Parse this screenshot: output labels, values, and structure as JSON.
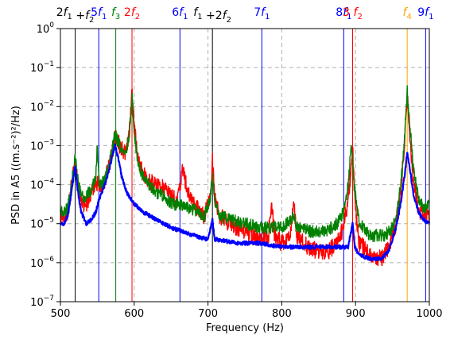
{
  "chart_data": {
    "type": "line",
    "title": "",
    "xlabel": "Frequency (Hz)",
    "ylabel": "PSD in A5 ((m.s⁻²)²/Hz)",
    "xlim": [
      500,
      1000
    ],
    "ylim_exponent": [
      -7,
      0
    ],
    "yscale": "log",
    "grid": "dashed-gray",
    "x_ticks": [
      "500",
      "600",
      "700",
      "800",
      "900",
      "1000"
    ],
    "y_ticks": [
      {
        "base": "10",
        "exp": "0",
        "value": 0
      },
      {
        "base": "10",
        "exp": "−1",
        "value": -1
      },
      {
        "base": "10",
        "exp": "−2",
        "value": -2
      },
      {
        "base": "10",
        "exp": "−3",
        "value": -3
      },
      {
        "base": "10",
        "exp": "−4",
        "value": -4
      },
      {
        "base": "10",
        "exp": "−5",
        "value": -5
      },
      {
        "base": "10",
        "exp": "−6",
        "value": -6
      },
      {
        "base": "10",
        "exp": "−7",
        "value": -7
      }
    ],
    "vertical_markers": [
      {
        "x": 520,
        "color": "#000000",
        "style": "solid"
      },
      {
        "x": 552,
        "color": "#0000ff",
        "style": "solid"
      },
      {
        "x": 575,
        "color": "#008000",
        "style": "solid"
      },
      {
        "x": 597,
        "color": "#ff0000",
        "style": "solid"
      },
      {
        "x": 662,
        "color": "#0000ff",
        "style": "solid"
      },
      {
        "x": 706,
        "color": "#000000",
        "style": "solid"
      },
      {
        "x": 773,
        "color": "#0000ff",
        "style": "solid"
      },
      {
        "x": 884,
        "color": "#0000ff",
        "style": "solid"
      },
      {
        "x": 896,
        "color": "#ff0000",
        "style": "solid"
      },
      {
        "x": 970,
        "color": "#ffa500",
        "style": "solid"
      },
      {
        "x": 995,
        "color": "#0000ff",
        "style": "solid"
      }
    ],
    "top_labels": [
      {
        "x": 520,
        "color": "#000000",
        "parts": [
          {
            "t": "2"
          },
          {
            "t": "f",
            "i": true
          },
          {
            "t": "1",
            "sub": true
          },
          {
            "t": " +"
          },
          {
            "t": "f",
            "i": true
          },
          {
            "t": "2",
            "sub": true
          }
        ]
      },
      {
        "x": 552,
        "color": "#0000ff",
        "parts": [
          {
            "t": "5"
          },
          {
            "t": "f",
            "i": true
          },
          {
            "t": "1",
            "sub": true
          }
        ]
      },
      {
        "x": 575,
        "color": "#008000",
        "parts": [
          {
            "t": "f",
            "i": true
          },
          {
            "t": "3",
            "sub": true
          }
        ]
      },
      {
        "x": 597,
        "color": "#ff0000",
        "parts": [
          {
            "t": "2"
          },
          {
            "t": "f",
            "i": true
          },
          {
            "t": "2",
            "sub": true
          }
        ]
      },
      {
        "x": 662,
        "color": "#0000ff",
        "parts": [
          {
            "t": "6"
          },
          {
            "t": "f",
            "i": true
          },
          {
            "t": "1",
            "sub": true
          }
        ]
      },
      {
        "x": 706,
        "color": "#000000",
        "parts": [
          {
            "t": "f",
            "i": true
          },
          {
            "t": "1",
            "sub": true
          },
          {
            "t": " +2"
          },
          {
            "t": "f",
            "i": true
          },
          {
            "t": "2",
            "sub": true
          }
        ]
      },
      {
        "x": 773,
        "color": "#0000ff",
        "parts": [
          {
            "t": "7"
          },
          {
            "t": "f",
            "i": true
          },
          {
            "t": "1",
            "sub": true
          }
        ]
      },
      {
        "x": 884,
        "color": "#0000ff",
        "parts": [
          {
            "t": "8"
          },
          {
            "t": "f",
            "i": true
          },
          {
            "t": "1",
            "sub": true
          }
        ]
      },
      {
        "x": 896,
        "color": "#ff0000",
        "parts": [
          {
            "t": "3 "
          },
          {
            "t": "f",
            "i": true
          },
          {
            "t": "2",
            "sub": true
          }
        ]
      },
      {
        "x": 970,
        "color": "#ffa500",
        "parts": [
          {
            "t": "f",
            "i": true
          },
          {
            "t": "4",
            "sub": true
          }
        ]
      },
      {
        "x": 995,
        "color": "#0000ff",
        "parts": [
          {
            "t": "9"
          },
          {
            "t": "f",
            "i": true
          },
          {
            "t": "1",
            "sub": true
          }
        ]
      }
    ],
    "series": [
      {
        "color": "#ff0000",
        "log10_points": [
          [
            500,
            -4.8
          ],
          [
            505,
            -4.9
          ],
          [
            510,
            -4.7
          ],
          [
            515,
            -4.0
          ],
          [
            520,
            -3.4
          ],
          [
            523,
            -3.9
          ],
          [
            528,
            -4.5
          ],
          [
            535,
            -4.5
          ],
          [
            542,
            -4.2
          ],
          [
            548,
            -4.0
          ],
          [
            552,
            -4.0
          ],
          [
            556,
            -4.1
          ],
          [
            560,
            -3.9
          ],
          [
            565,
            -3.6
          ],
          [
            570,
            -3.2
          ],
          [
            574,
            -2.8
          ],
          [
            578,
            -2.9
          ],
          [
            583,
            -3.1
          ],
          [
            588,
            -3.2
          ],
          [
            593,
            -2.7
          ],
          [
            597,
            -1.7
          ],
          [
            600,
            -2.5
          ],
          [
            605,
            -3.4
          ],
          [
            612,
            -3.7
          ],
          [
            620,
            -3.9
          ],
          [
            630,
            -4.0
          ],
          [
            640,
            -4.1
          ],
          [
            650,
            -4.3
          ],
          [
            658,
            -4.4
          ],
          [
            662,
            -4.0
          ],
          [
            665,
            -3.6
          ],
          [
            668,
            -3.8
          ],
          [
            675,
            -4.3
          ],
          [
            685,
            -4.6
          ],
          [
            695,
            -4.8
          ],
          [
            703,
            -4.3
          ],
          [
            706,
            -3.4
          ],
          [
            709,
            -4.3
          ],
          [
            715,
            -4.8
          ],
          [
            730,
            -5.0
          ],
          [
            750,
            -5.2
          ],
          [
            770,
            -5.4
          ],
          [
            782,
            -5.3
          ],
          [
            786,
            -4.4
          ],
          [
            790,
            -5.3
          ],
          [
            800,
            -5.5
          ],
          [
            812,
            -5.3
          ],
          [
            816,
            -4.4
          ],
          [
            820,
            -5.3
          ],
          [
            835,
            -5.6
          ],
          [
            850,
            -5.7
          ],
          [
            865,
            -5.7
          ],
          [
            880,
            -5.3
          ],
          [
            888,
            -4.6
          ],
          [
            893,
            -3.8
          ],
          [
            896,
            -3.0
          ],
          [
            899,
            -4.5
          ],
          [
            905,
            -5.5
          ],
          [
            920,
            -5.8
          ],
          [
            935,
            -5.9
          ],
          [
            945,
            -5.6
          ],
          [
            955,
            -5.0
          ],
          [
            962,
            -4.0
          ],
          [
            967,
            -2.7
          ],
          [
            970,
            -1.7
          ],
          [
            973,
            -2.6
          ],
          [
            978,
            -3.8
          ],
          [
            985,
            -4.6
          ],
          [
            992,
            -4.8
          ],
          [
            1000,
            -4.8
          ]
        ]
      },
      {
        "color": "#008000",
        "log10_points": [
          [
            500,
            -4.6
          ],
          [
            505,
            -4.7
          ],
          [
            510,
            -4.6
          ],
          [
            515,
            -4.0
          ],
          [
            520,
            -3.3
          ],
          [
            523,
            -3.8
          ],
          [
            528,
            -4.3
          ],
          [
            535,
            -4.3
          ],
          [
            542,
            -4.1
          ],
          [
            548,
            -3.8
          ],
          [
            550,
            -3.0
          ],
          [
            552,
            -3.9
          ],
          [
            556,
            -4.0
          ],
          [
            560,
            -3.8
          ],
          [
            565,
            -3.5
          ],
          [
            570,
            -3.1
          ],
          [
            574,
            -2.7
          ],
          [
            578,
            -2.9
          ],
          [
            583,
            -3.1
          ],
          [
            588,
            -3.2
          ],
          [
            593,
            -2.8
          ],
          [
            597,
            -1.7
          ],
          [
            600,
            -2.6
          ],
          [
            605,
            -3.5
          ],
          [
            612,
            -3.8
          ],
          [
            620,
            -4.0
          ],
          [
            630,
            -4.2
          ],
          [
            640,
            -4.3
          ],
          [
            650,
            -4.5
          ],
          [
            662,
            -4.5
          ],
          [
            675,
            -4.6
          ],
          [
            685,
            -4.7
          ],
          [
            695,
            -4.8
          ],
          [
            703,
            -4.4
          ],
          [
            706,
            -3.7
          ],
          [
            709,
            -4.4
          ],
          [
            715,
            -4.8
          ],
          [
            730,
            -4.9
          ],
          [
            750,
            -5.0
          ],
          [
            770,
            -5.1
          ],
          [
            790,
            -5.1
          ],
          [
            800,
            -5.1
          ],
          [
            816,
            -4.8
          ],
          [
            820,
            -5.1
          ],
          [
            840,
            -5.2
          ],
          [
            860,
            -5.2
          ],
          [
            875,
            -5.0
          ],
          [
            884,
            -4.7
          ],
          [
            890,
            -4.0
          ],
          [
            894,
            -3.0
          ],
          [
            898,
            -4.0
          ],
          [
            905,
            -5.0
          ],
          [
            920,
            -5.3
          ],
          [
            940,
            -5.3
          ],
          [
            950,
            -5.1
          ],
          [
            958,
            -4.5
          ],
          [
            964,
            -3.5
          ],
          [
            968,
            -2.3
          ],
          [
            970,
            -1.6
          ],
          [
            973,
            -2.3
          ],
          [
            978,
            -3.5
          ],
          [
            985,
            -4.3
          ],
          [
            992,
            -4.6
          ],
          [
            1000,
            -4.5
          ]
        ]
      },
      {
        "color": "#0000ff",
        "log10_points": [
          [
            500,
            -5.0
          ],
          [
            505,
            -5.0
          ],
          [
            510,
            -4.8
          ],
          [
            515,
            -4.2
          ],
          [
            520,
            -3.5
          ],
          [
            523,
            -4.1
          ],
          [
            528,
            -4.7
          ],
          [
            535,
            -5.0
          ],
          [
            542,
            -4.9
          ],
          [
            548,
            -4.7
          ],
          [
            552,
            -4.4
          ],
          [
            556,
            -4.2
          ],
          [
            560,
            -4.0
          ],
          [
            565,
            -3.7
          ],
          [
            570,
            -3.3
          ],
          [
            574,
            -3.0
          ],
          [
            578,
            -3.3
          ],
          [
            583,
            -3.8
          ],
          [
            590,
            -4.2
          ],
          [
            600,
            -4.5
          ],
          [
            612,
            -4.7
          ],
          [
            630,
            -4.9
          ],
          [
            650,
            -5.1
          ],
          [
            680,
            -5.3
          ],
          [
            700,
            -5.4
          ],
          [
            706,
            -4.9
          ],
          [
            709,
            -5.4
          ],
          [
            740,
            -5.5
          ],
          [
            770,
            -5.5
          ],
          [
            800,
            -5.6
          ],
          [
            830,
            -5.6
          ],
          [
            860,
            -5.6
          ],
          [
            880,
            -5.6
          ],
          [
            890,
            -5.6
          ],
          [
            896,
            -5.0
          ],
          [
            899,
            -5.6
          ],
          [
            905,
            -5.8
          ],
          [
            920,
            -5.9
          ],
          [
            935,
            -5.9
          ],
          [
            945,
            -5.7
          ],
          [
            955,
            -5.1
          ],
          [
            962,
            -4.4
          ],
          [
            967,
            -3.7
          ],
          [
            970,
            -3.2
          ],
          [
            973,
            -3.5
          ],
          [
            978,
            -4.2
          ],
          [
            985,
            -4.7
          ],
          [
            992,
            -4.9
          ],
          [
            1000,
            -5.0
          ]
        ]
      }
    ]
  }
}
